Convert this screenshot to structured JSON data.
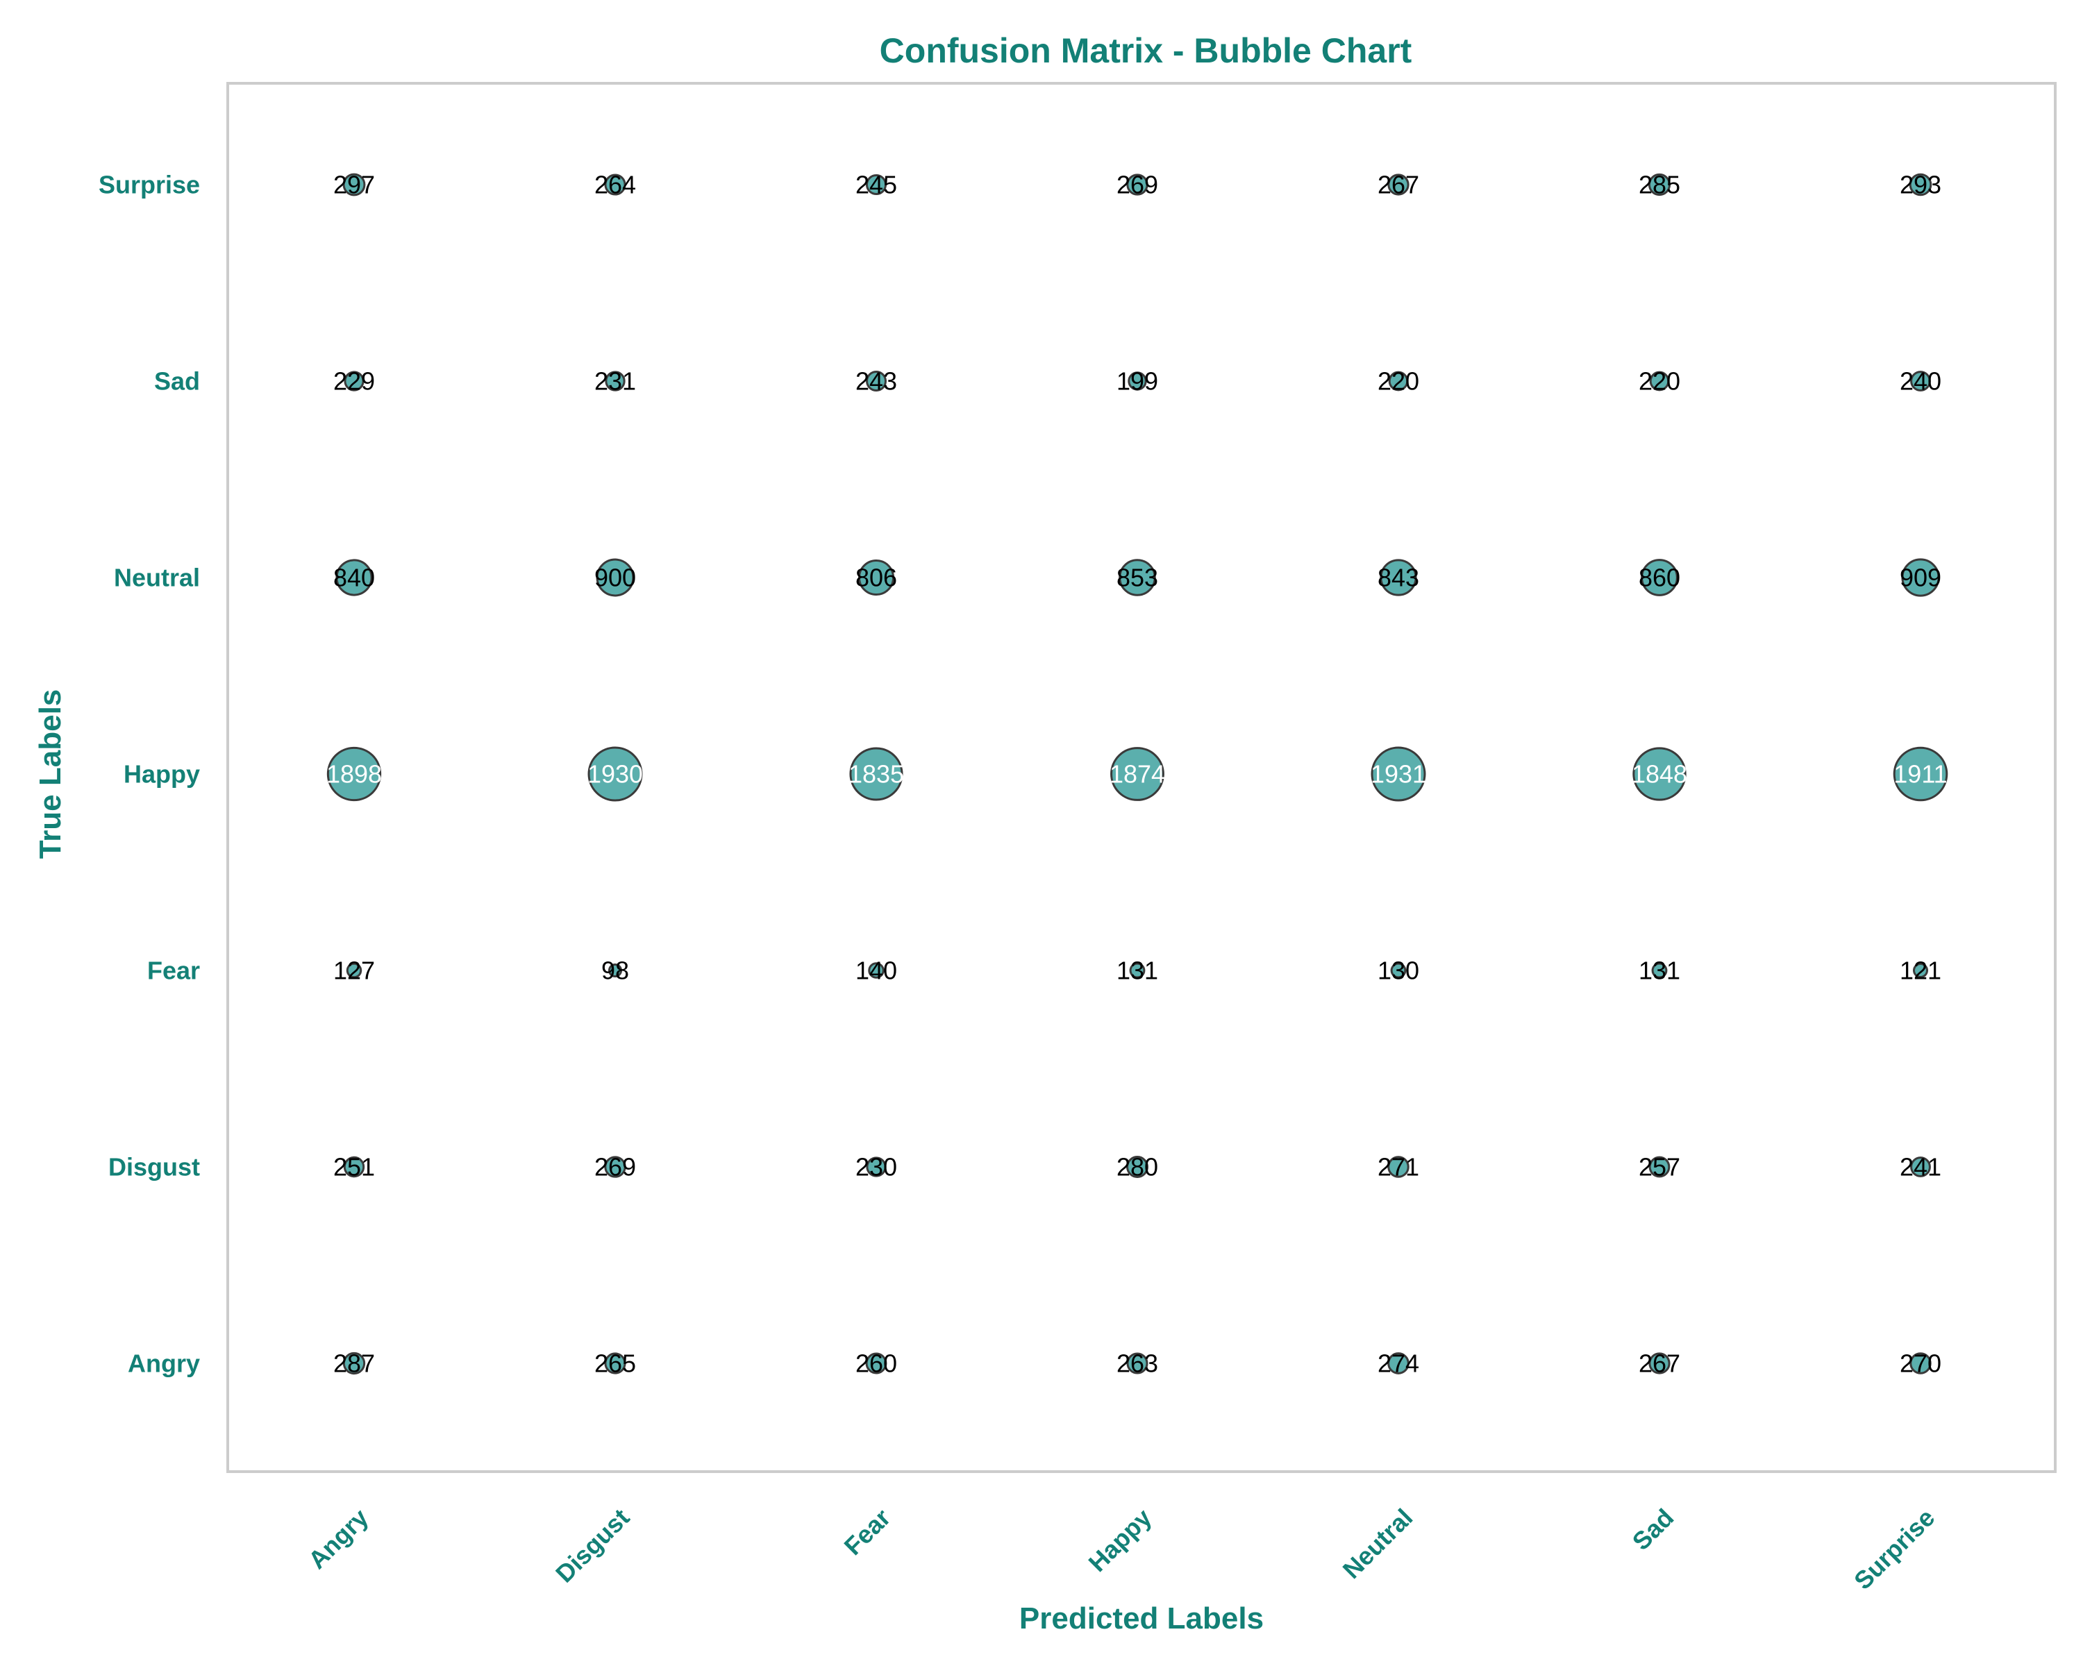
{
  "chart_data": {
    "type": "scatter",
    "title": "Confusion Matrix - Bubble Chart",
    "xlabel": "Predicted Labels",
    "ylabel": "True Labels",
    "x_categories": [
      "Angry",
      "Disgust",
      "Fear",
      "Happy",
      "Neutral",
      "Sad",
      "Surprise"
    ],
    "y_categories": [
      "Angry",
      "Disgust",
      "Fear",
      "Happy",
      "Neutral",
      "Sad",
      "Surprise"
    ],
    "matrix": [
      [
        287,
        265,
        260,
        263,
        274,
        267,
        270
      ],
      [
        251,
        269,
        230,
        280,
        271,
        257,
        241
      ],
      [
        127,
        98,
        140,
        131,
        130,
        131,
        121
      ],
      [
        1898,
        1930,
        1835,
        1874,
        1931,
        1848,
        1911
      ],
      [
        840,
        900,
        806,
        853,
        843,
        860,
        909
      ],
      [
        229,
        231,
        243,
        199,
        220,
        220,
        240
      ],
      [
        297,
        264,
        245,
        269,
        267,
        285,
        293
      ]
    ],
    "grid": false,
    "colors": {
      "bubble": "#5BAFAD",
      "bubble_edge": "#3a3a3a",
      "text_accent": "#138076",
      "frame": "#cccccc",
      "label_dark": "#000000",
      "label_light": "#ffffff"
    }
  }
}
